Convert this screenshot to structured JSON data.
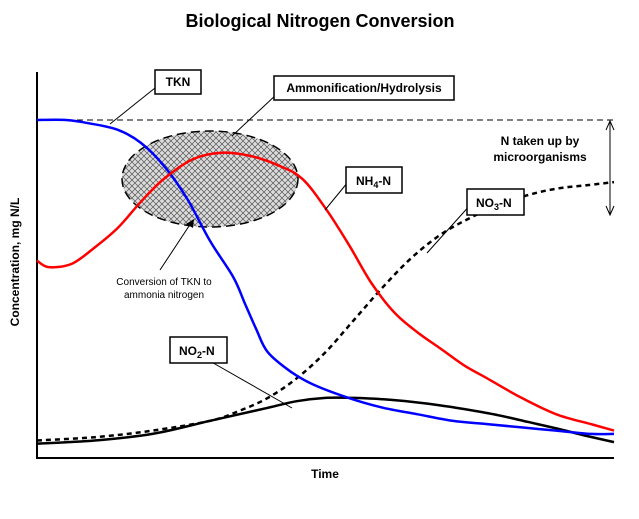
{
  "chart_data": {
    "type": "line",
    "title": "Biological Nitrogen Conversion",
    "xlabel": "Time",
    "ylabel": "Concentration, mg N/L",
    "x_ticks_shown": false,
    "y_ticks_shown": false,
    "grid": false,
    "xlim": [
      0,
      100
    ],
    "ylim": [
      0,
      100
    ],
    "colors": {
      "TKN": "#0000ff",
      "NH4-N": "#ff0000",
      "NO3-N": "#000000",
      "NO2-N": "#000000",
      "ellipse_fill": "#c8c8c8"
    },
    "series": [
      {
        "name": "TKN",
        "style": "solid",
        "x": [
          0,
          5,
          9,
          14,
          18,
          22,
          26,
          30,
          34,
          36,
          38,
          40,
          44,
          48,
          54,
          60,
          66,
          72,
          78,
          84,
          90,
          96,
          100
        ],
        "y": [
          100,
          100,
          99,
          97,
          93,
          86,
          76,
          63,
          52,
          44,
          36,
          29,
          23,
          19,
          15,
          12,
          10,
          8,
          7,
          6,
          5,
          4,
          4
        ]
      },
      {
        "name": "NH4-N",
        "style": "solid",
        "x": [
          0,
          2,
          6,
          10,
          14,
          18,
          22,
          27,
          32,
          37,
          42,
          46,
          50,
          54,
          58,
          62,
          66,
          70,
          74,
          78,
          84,
          90,
          96,
          100
        ],
        "y": [
          57,
          55,
          56,
          61,
          67,
          75,
          82,
          88,
          90,
          89,
          86,
          82,
          73,
          62,
          50,
          41,
          35,
          30,
          25,
          21,
          15,
          10,
          7,
          5
        ]
      },
      {
        "name": "NO3-N",
        "style": "dashed",
        "x": [
          0,
          10,
          20,
          30,
          35,
          40,
          45,
          50,
          55,
          60,
          65,
          70,
          75,
          80,
          85,
          90,
          95,
          100
        ],
        "y": [
          2,
          3,
          5,
          8,
          11,
          15,
          21,
          29,
          39,
          49,
          58,
          65,
          70,
          74,
          77,
          79,
          80,
          81
        ]
      },
      {
        "name": "NO2-N",
        "style": "solid",
        "x": [
          0,
          10,
          20,
          30,
          40,
          45,
          50,
          55,
          60,
          65,
          70,
          75,
          80,
          85,
          90,
          95,
          100
        ],
        "y": [
          1,
          2,
          4,
          8,
          12,
          14,
          15,
          15,
          14.6,
          13.8,
          12.7,
          11.3,
          9.7,
          7.7,
          5.7,
          3.5,
          1.5
        ]
      }
    ],
    "annotations": {
      "tkn_label": "TKN",
      "ammonification_label": "Ammonification/Hydrolysis",
      "nh4_label_main": "NH",
      "nh4_label_sub": "4",
      "nh4_label_tail": "-N",
      "no3_label_main": "NO",
      "no3_label_sub": "3",
      "no3_label_tail": "-N",
      "no2_label_main": "NO",
      "no2_label_sub": "2",
      "no2_label_tail": "-N",
      "uptake_line1": "N taken up by",
      "uptake_line2": "microorganisms",
      "conversion_line1": "Conversion of TKN to",
      "conversion_line2": "ammonia nitrogen"
    }
  }
}
